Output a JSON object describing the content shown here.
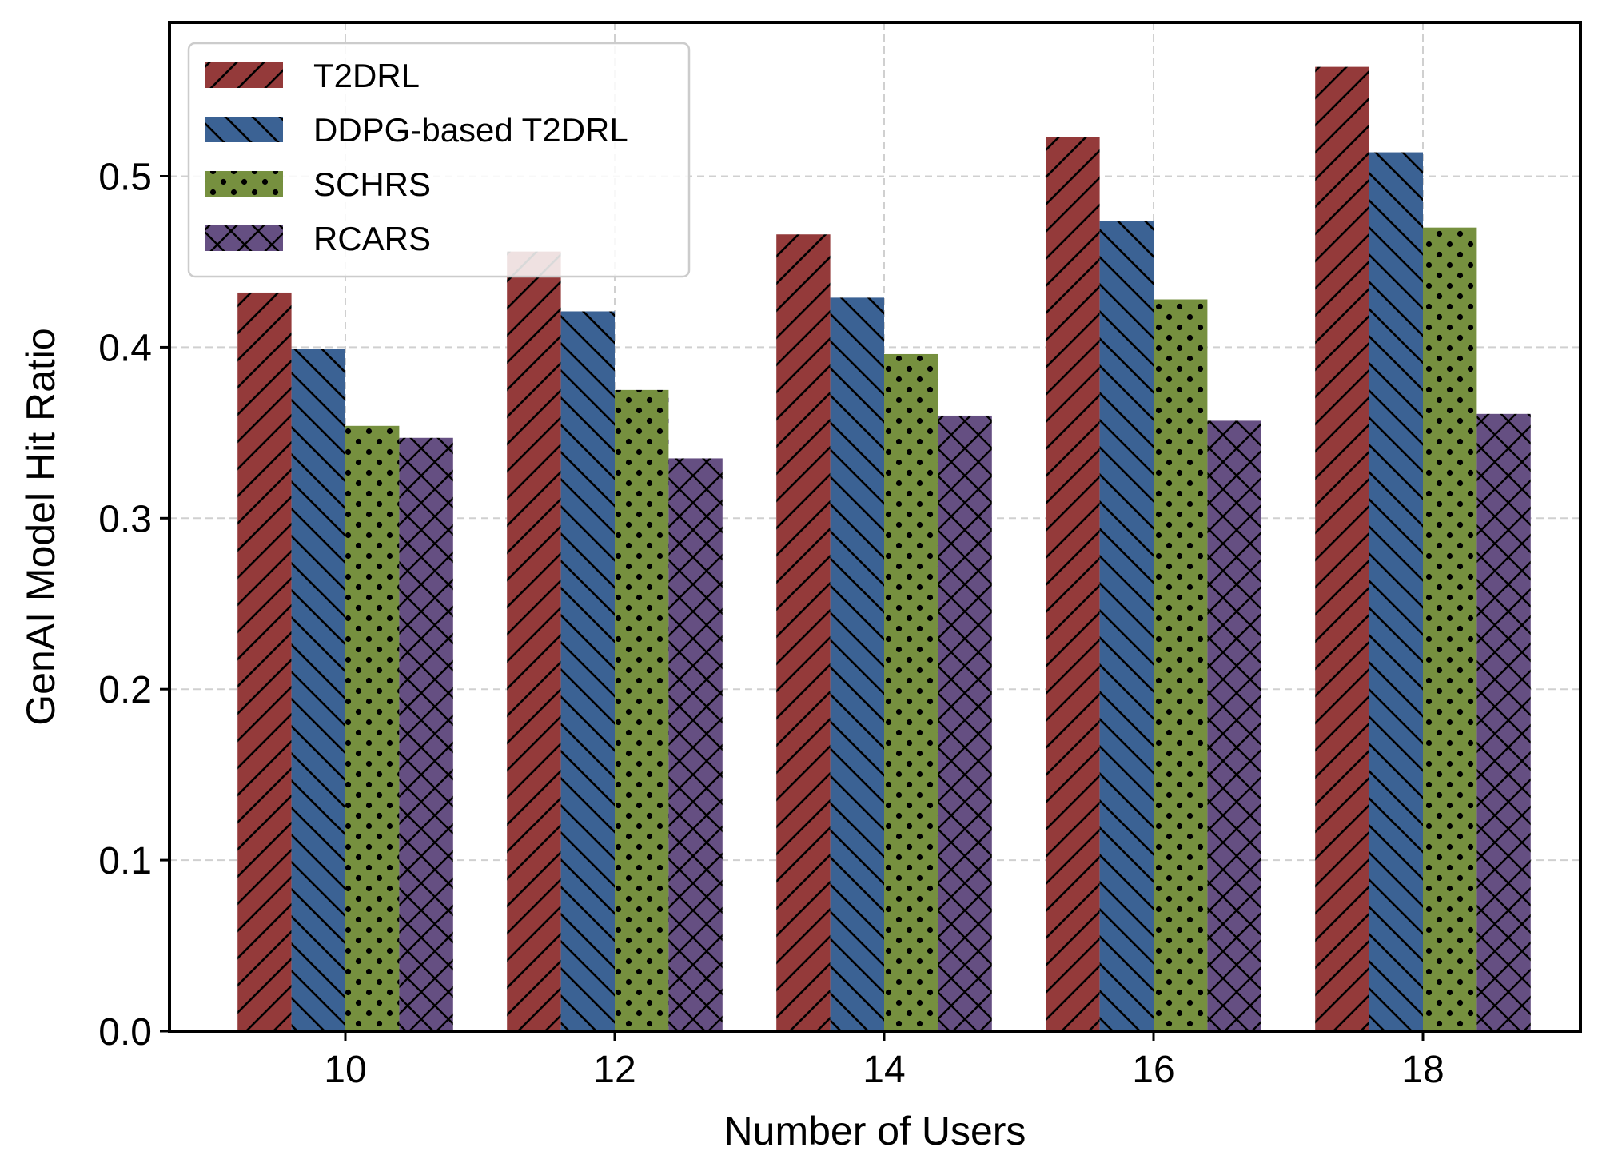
{
  "chart_data": {
    "type": "bar",
    "title": "",
    "xlabel": "Number of Users",
    "ylabel": "GenAI Model Hit Ratio",
    "categories": [
      "10",
      "12",
      "14",
      "16",
      "18"
    ],
    "ylim": [
      0,
      0.59
    ],
    "yticks": [
      "0.0",
      "0.1",
      "0.2",
      "0.3",
      "0.4",
      "0.5"
    ],
    "grid": true,
    "legend_position": "top-left",
    "series": [
      {
        "name": "T2DRL",
        "color": "#943a3a",
        "pattern": "diagonal-forward",
        "values": [
          0.432,
          0.456,
          0.466,
          0.523,
          0.564
        ]
      },
      {
        "name": "DDPG-based T2DRL",
        "color": "#3b6294",
        "pattern": "diagonal-backward",
        "values": [
          0.399,
          0.421,
          0.429,
          0.474,
          0.514
        ]
      },
      {
        "name": "SCHRS",
        "color": "#76903f",
        "pattern": "dots",
        "values": [
          0.354,
          0.375,
          0.396,
          0.428,
          0.47
        ]
      },
      {
        "name": "RCARS",
        "color": "#654f82",
        "pattern": "crosshatch",
        "values": [
          0.347,
          0.335,
          0.36,
          0.357,
          0.361
        ]
      }
    ]
  }
}
